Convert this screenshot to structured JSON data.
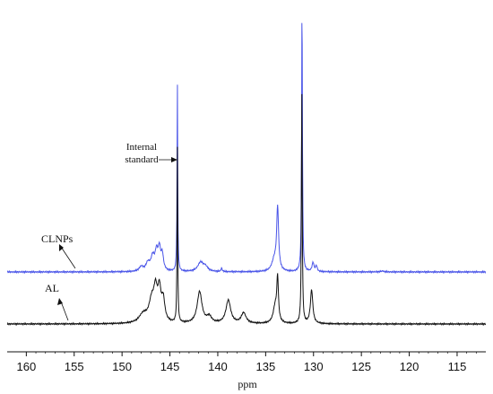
{
  "chart_data": {
    "type": "line",
    "xlabel": "ppm",
    "ylabel": "",
    "title": "",
    "xlim": [
      162,
      112
    ],
    "x_reversed": true,
    "x_ticks": [
      160,
      155,
      150,
      145,
      140,
      135,
      130,
      125,
      120,
      115
    ],
    "grid": false,
    "legend": "none",
    "series": [
      {
        "name": "CLNPs",
        "color": "#4a55e8",
        "baseline": 0.0,
        "peaks": [
          {
            "x": 148.0,
            "h": 0.02,
            "w": 0.25
          },
          {
            "x": 147.3,
            "h": 0.035,
            "w": 0.25
          },
          {
            "x": 146.8,
            "h": 0.06,
            "w": 0.22
          },
          {
            "x": 146.4,
            "h": 0.08,
            "w": 0.18
          },
          {
            "x": 146.1,
            "h": 0.09,
            "w": 0.15
          },
          {
            "x": 145.8,
            "h": 0.07,
            "w": 0.15
          },
          {
            "x": 144.22,
            "h": 0.85,
            "w": 0.04
          },
          {
            "x": 141.8,
            "h": 0.04,
            "w": 0.35
          },
          {
            "x": 141.3,
            "h": 0.02,
            "w": 0.3
          },
          {
            "x": 139.6,
            "h": 0.015,
            "w": 0.08
          },
          {
            "x": 133.75,
            "h": 0.28,
            "w": 0.12
          },
          {
            "x": 134.1,
            "h": 0.05,
            "w": 0.3
          },
          {
            "x": 131.2,
            "h": 1.2,
            "w": 0.05
          },
          {
            "x": 130.05,
            "h": 0.04,
            "w": 0.12
          },
          {
            "x": 129.7,
            "h": 0.025,
            "w": 0.1
          },
          {
            "x": 122.8,
            "h": 0.004,
            "w": 0.2
          }
        ]
      },
      {
        "name": "AL",
        "color": "#111111",
        "baseline": 0.0,
        "peaks": [
          {
            "x": 147.8,
            "h": 0.04,
            "w": 0.5
          },
          {
            "x": 146.9,
            "h": 0.1,
            "w": 0.35
          },
          {
            "x": 146.5,
            "h": 0.13,
            "w": 0.22
          },
          {
            "x": 146.1,
            "h": 0.14,
            "w": 0.2
          },
          {
            "x": 145.7,
            "h": 0.1,
            "w": 0.2
          },
          {
            "x": 144.22,
            "h": 0.85,
            "w": 0.04
          },
          {
            "x": 141.9,
            "h": 0.15,
            "w": 0.3
          },
          {
            "x": 140.9,
            "h": 0.03,
            "w": 0.3
          },
          {
            "x": 138.9,
            "h": 0.11,
            "w": 0.3
          },
          {
            "x": 137.3,
            "h": 0.05,
            "w": 0.3
          },
          {
            "x": 134.0,
            "h": 0.08,
            "w": 0.25
          },
          {
            "x": 133.75,
            "h": 0.2,
            "w": 0.1
          },
          {
            "x": 131.22,
            "h": 1.1,
            "w": 0.05
          },
          {
            "x": 130.2,
            "h": 0.16,
            "w": 0.15
          }
        ]
      }
    ],
    "annotations": [
      {
        "text_lines": [
          "Internal",
          "standard"
        ],
        "points_to_x": 144.2
      }
    ]
  }
}
